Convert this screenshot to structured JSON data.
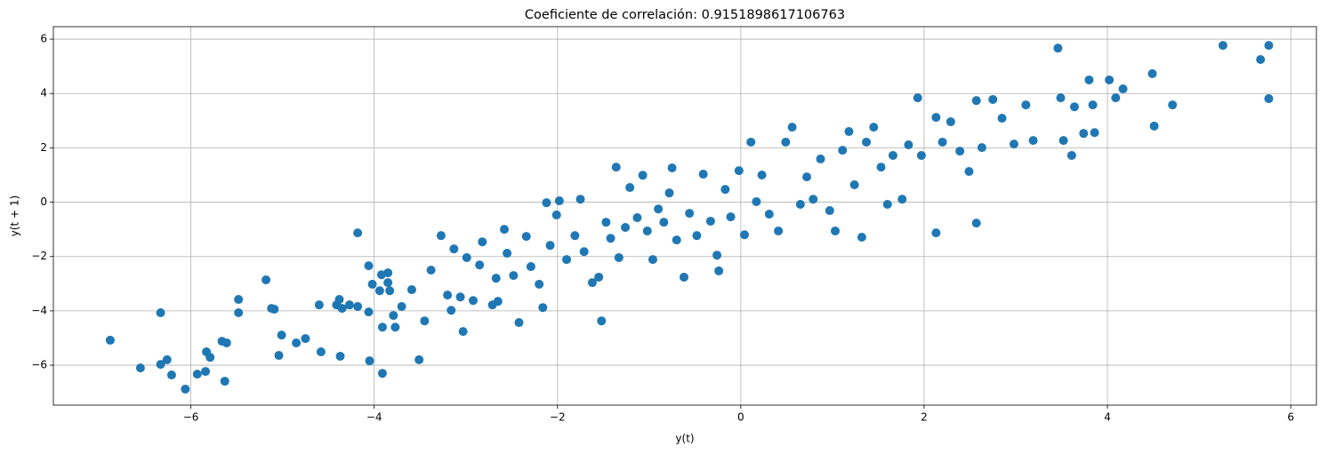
{
  "chart_data": {
    "type": "scatter",
    "title": "Coeficiente de correlación: 0.9151898617106763",
    "x_label": "y(t)",
    "y_label": "y(t + 1)",
    "color": "#1f77b4",
    "grid": true,
    "xlim": [
      -7.5,
      6.28
    ],
    "ylim": [
      -7.47,
      6.46
    ],
    "xticks": [
      {
        "value": -6,
        "label": "−6"
      },
      {
        "value": -4,
        "label": "−4"
      },
      {
        "value": -2,
        "label": "−2"
      },
      0,
      2,
      4,
      6
    ],
    "yticks": [
      {
        "value": -6,
        "label": "−6"
      },
      {
        "value": -4,
        "label": "−4"
      },
      {
        "value": -2,
        "label": "−2"
      },
      0,
      2,
      4,
      6
    ],
    "x": [
      -6.88,
      -6.55,
      -6.33,
      -6.33,
      -6.26,
      -6.21,
      -6.06,
      -5.93,
      -5.83,
      -5.84,
      -5.79,
      -5.66,
      -5.61,
      -5.63,
      -5.48,
      -5.48,
      -5.18,
      -5.12,
      -5.09,
      -5.04,
      -5.01,
      -4.85,
      -4.75,
      -4.6,
      -4.58,
      -4.41,
      -4.38,
      -4.37,
      -4.35,
      -4.27,
      -4.18,
      -4.18,
      -4.06,
      -4.06,
      -4.05,
      -4.02,
      -3.94,
      -3.92,
      -3.91,
      -3.91,
      -3.85,
      -3.85,
      -3.83,
      -3.79,
      -3.77,
      -3.7,
      -3.59,
      -3.51,
      -3.45,
      -3.38,
      -3.27,
      -3.2,
      -3.16,
      -3.13,
      -3.06,
      -3.03,
      -2.99,
      -2.92,
      -2.85,
      -2.82,
      -2.71,
      -2.67,
      -2.65,
      -2.58,
      -2.55,
      -2.48,
      -2.42,
      -2.34,
      -2.29,
      -2.2,
      -2.16,
      -2.12,
      -2.08,
      -2.01,
      -1.98,
      -1.9,
      -1.81,
      -1.75,
      -1.71,
      -1.62,
      -1.55,
      -1.52,
      -1.47,
      -1.42,
      -1.36,
      -1.33,
      -1.26,
      -1.21,
      -1.13,
      -1.07,
      -1.02,
      -0.96,
      -0.9,
      -0.84,
      -0.78,
      -0.75,
      -0.7,
      -0.62,
      -0.56,
      -0.48,
      -0.41,
      -0.33,
      -0.26,
      -0.24,
      -0.17,
      -0.11,
      -0.02,
      0.04,
      0.11,
      0.17,
      0.23,
      0.31,
      0.41,
      0.49,
      0.56,
      0.65,
      0.72,
      0.79,
      0.87,
      0.97,
      1.03,
      1.11,
      1.18,
      1.24,
      1.32,
      1.37,
      1.45,
      1.53,
      1.6,
      1.66,
      1.76,
      1.83,
      1.93,
      1.97,
      2.13,
      2.13,
      2.2,
      2.29,
      2.39,
      2.49,
      2.57,
      2.57,
      2.63,
      2.75,
      2.85,
      2.98,
      3.11,
      3.19,
      3.46,
      3.49,
      3.52,
      3.61,
      3.64,
      3.74,
      3.8,
      3.84,
      3.86,
      4.02,
      4.09,
      4.17,
      4.49,
      4.51,
      4.71,
      5.26,
      5.67,
      5.76,
      5.76
    ],
    "values": [
      -5.08,
      -6.1,
      -4.07,
      -5.97,
      -5.8,
      -6.36,
      -6.88,
      -6.33,
      -5.51,
      -6.23,
      -5.71,
      -5.12,
      -5.18,
      -6.59,
      -3.58,
      -4.07,
      -2.86,
      -3.91,
      -3.94,
      -5.64,
      -4.89,
      -5.18,
      -5.02,
      -3.78,
      -5.51,
      -3.78,
      -3.58,
      -5.67,
      -3.91,
      -3.78,
      -1.13,
      -3.84,
      -2.34,
      -4.04,
      -5.84,
      -3.02,
      -3.26,
      -2.67,
      -4.6,
      -6.3,
      -2.6,
      -2.96,
      -3.26,
      -4.17,
      -4.6,
      -3.84,
      -3.22,
      -5.8,
      -4.37,
      -2.5,
      -1.23,
      -3.42,
      -3.98,
      -1.72,
      -3.49,
      -4.76,
      -2.04,
      -3.62,
      -2.31,
      -1.46,
      -3.78,
      -2.8,
      -3.65,
      -1.0,
      -1.88,
      -2.7,
      -4.43,
      -1.26,
      -2.37,
      -3.02,
      -3.88,
      -0.02,
      -1.59,
      -0.47,
      0.05,
      -2.11,
      -1.23,
      0.11,
      -1.82,
      -2.96,
      -2.76,
      -4.37,
      -0.74,
      -1.33,
      1.29,
      -2.04,
      -0.93,
      0.54,
      -0.57,
      0.99,
      -1.06,
      -2.11,
      -0.25,
      -0.74,
      0.34,
      1.26,
      -1.39,
      -2.76,
      -0.41,
      -1.23,
      1.03,
      -0.7,
      -1.95,
      -2.53,
      0.47,
      -0.54,
      1.16,
      -1.2,
      2.21,
      0.02,
      1.0,
      -0.44,
      -1.06,
      2.21,
      2.76,
      -0.08,
      0.93,
      0.11,
      1.59,
      -0.31,
      -1.06,
      1.91,
      2.6,
      0.64,
      -1.29,
      2.21,
      2.76,
      1.29,
      -0.08,
      1.72,
      0.11,
      2.11,
      3.84,
      1.72,
      -1.13,
      3.12,
      2.21,
      2.96,
      1.88,
      1.13,
      -0.77,
      3.74,
      2.01,
      3.78,
      3.09,
      2.14,
      3.58,
      2.27,
      5.67,
      3.84,
      2.27,
      1.72,
      3.51,
      2.53,
      4.5,
      3.58,
      2.56,
      4.5,
      3.84,
      4.17,
      4.73,
      2.8,
      3.58,
      5.77,
      5.25,
      5.77,
      3.81
    ]
  }
}
